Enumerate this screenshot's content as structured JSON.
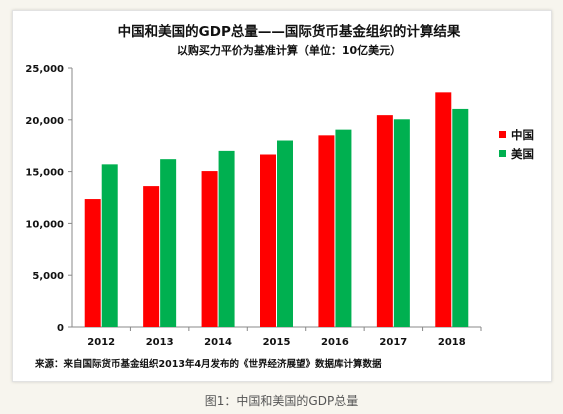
{
  "chart_data": {
    "type": "bar",
    "title": "中国和美国的GDP总量——国际货币基金组织的计算结果",
    "subtitle": "以购买力平价为基准计算（单位：10亿美元）",
    "categories": [
      "2012",
      "2013",
      "2014",
      "2015",
      "2016",
      "2017",
      "2018"
    ],
    "series": [
      {
        "name": "中国",
        "color": "#ff0000",
        "values": [
          12350,
          13600,
          15050,
          16650,
          18500,
          20450,
          22650
        ]
      },
      {
        "name": "美国",
        "color": "#00b050",
        "values": [
          15700,
          16200,
          17000,
          18000,
          19050,
          20050,
          21050
        ]
      }
    ],
    "ylim": [
      0,
      25000
    ],
    "yticks": [
      "0",
      "5,000",
      "10,000",
      "15,000",
      "20,000",
      "25,000"
    ],
    "ytick_values": [
      0,
      5000,
      10000,
      15000,
      20000,
      25000
    ],
    "legend_position": "right",
    "grid": false
  },
  "source_note": "来源：来自国际货币基金组织2013年4月发布的《世界经济展望》数据库计算数据",
  "figure_caption": "图1：中国和美国的GDP总量"
}
